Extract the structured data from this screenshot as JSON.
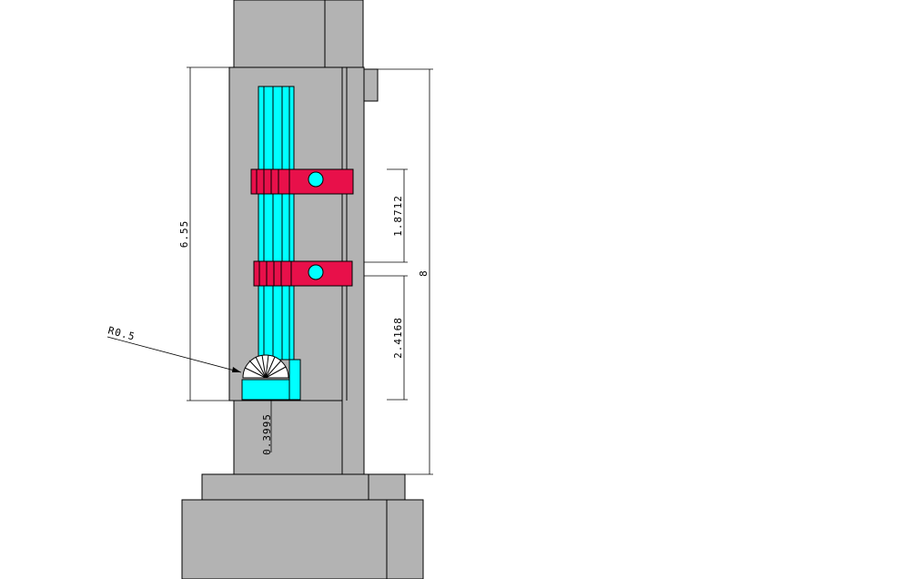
{
  "drawing": {
    "colors": {
      "body": "#b3b3b3",
      "tube": "#00ffff",
      "clamp": "#e8104a",
      "line": "#000000"
    },
    "dimensions": {
      "overall_height": "8",
      "left_height": "6.55",
      "upper_spacing": "1.8712",
      "lower_spacing": "2.4168",
      "bottom_offset": "0.3995",
      "bend_radius": "R0.5"
    }
  }
}
